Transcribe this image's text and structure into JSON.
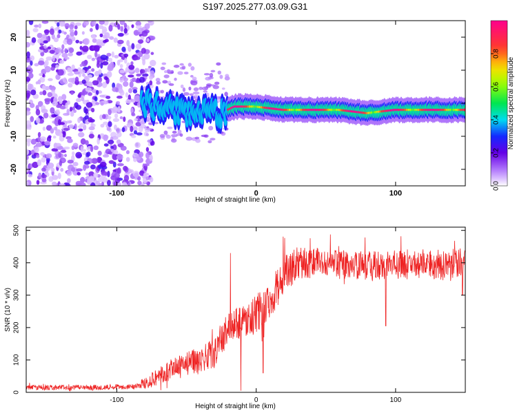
{
  "title": "S197.2025.277.03.09.G31",
  "charts": [
    {
      "type": "heatmap",
      "name": "spectrogram",
      "xlabel": "Height of straight line (km)",
      "ylabel": "Frequency (Hz)",
      "xlim": [
        -165,
        150
      ],
      "ylim": [
        -25,
        25
      ],
      "xticks": [
        -100,
        0,
        100
      ],
      "yticks": [
        -20,
        -10,
        0,
        10,
        20
      ],
      "colorbar": {
        "label": "Normalized spectral amplitude",
        "range": [
          0,
          1
        ],
        "ticks": [
          0.0,
          0.2,
          0.4,
          0.6,
          0.8
        ]
      },
      "ridge": {
        "description_points_x": [
          -80,
          -60,
          -40,
          -25,
          -15,
          0,
          20,
          40,
          60,
          80,
          100,
          120,
          150
        ],
        "description_points_freq": [
          0,
          -2,
          -3,
          -3,
          -1,
          -1,
          -2,
          -2,
          -2,
          -3,
          -2,
          -2,
          -2
        ]
      },
      "noise_region_x": [
        -165,
        -80
      ]
    },
    {
      "type": "line",
      "name": "snr",
      "xlabel": "Height of straight line (km)",
      "ylabel": "SNR (10 * v/v)",
      "xlim": [
        -165,
        150
      ],
      "ylim": [
        0,
        510
      ],
      "xticks": [
        -100,
        0,
        100
      ],
      "yticks": [
        0,
        100,
        200,
        300,
        400,
        500
      ],
      "color": "#ee2222",
      "envelope": {
        "x": [
          -165,
          -110,
          -85,
          -75,
          -60,
          -45,
          -30,
          -20,
          -10,
          0,
          10,
          20,
          30,
          50,
          70,
          100,
          130,
          150
        ],
        "mean": [
          15,
          15,
          20,
          40,
          70,
          95,
          120,
          200,
          220,
          240,
          290,
          360,
          400,
          400,
          390,
          395,
          395,
          400
        ],
        "spread": [
          8,
          8,
          10,
          25,
          35,
          40,
          45,
          50,
          50,
          60,
          60,
          60,
          50,
          45,
          45,
          45,
          50,
          50
        ]
      },
      "spikes": [
        {
          "x": -18.5,
          "y": 430
        },
        {
          "x": -11,
          "y": 5
        },
        {
          "x": 5,
          "y": 60
        },
        {
          "x": 93,
          "y": 205
        },
        {
          "x": 148,
          "y": 300
        }
      ]
    }
  ]
}
